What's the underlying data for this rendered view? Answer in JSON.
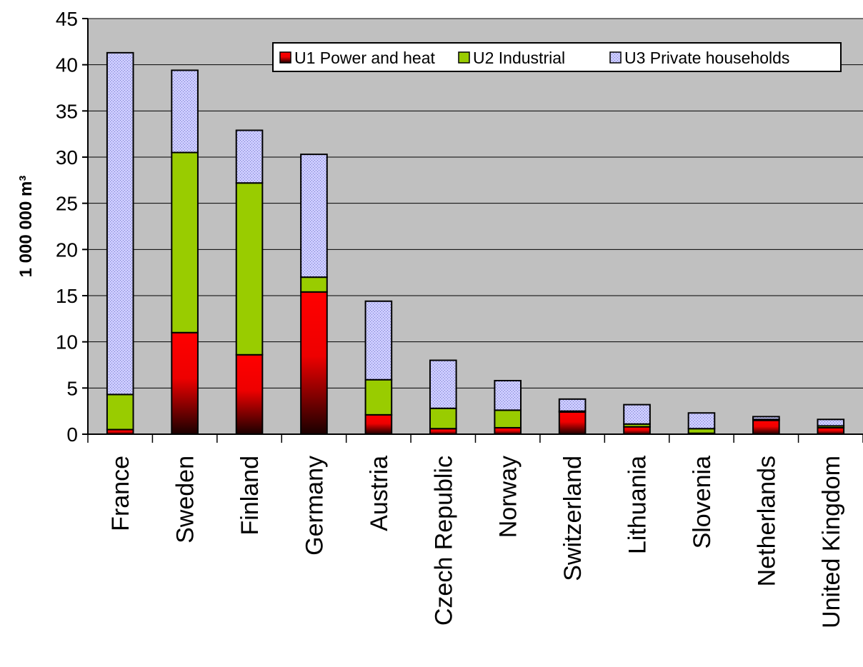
{
  "chart_data": {
    "type": "bar",
    "stacked": true,
    "title": "",
    "xlabel": "",
    "ylabel": "1 000 000 m³",
    "ylim": [
      0,
      45
    ],
    "yticks": [
      0,
      5,
      10,
      15,
      20,
      25,
      30,
      35,
      40,
      45
    ],
    "grid": true,
    "legend_position": "top-right",
    "categories": [
      "France",
      "Sweden",
      "Finland",
      "Germany",
      "Austria",
      "Czech Republic",
      "Norway",
      "Switzerland",
      "Lithuania",
      "Slovenia",
      "Netherlands",
      "United Kingdom"
    ],
    "series": [
      {
        "name": "U1 Power and heat",
        "color": "#ff0000",
        "values": [
          0.5,
          11.0,
          8.6,
          15.4,
          2.1,
          0.6,
          0.7,
          2.4,
          0.8,
          0.1,
          1.5,
          0.7
        ]
      },
      {
        "name": "U2 Industrial",
        "color": "#99cc00",
        "values": [
          3.8,
          19.5,
          18.6,
          1.6,
          3.8,
          2.2,
          1.9,
          0.1,
          0.3,
          0.5,
          0.1,
          0.2
        ]
      },
      {
        "name": "U3 Private households",
        "color": "#ccccff",
        "values": [
          37.0,
          8.9,
          5.7,
          13.3,
          8.5,
          5.2,
          3.2,
          1.3,
          2.1,
          1.7,
          0.3,
          0.7
        ]
      }
    ],
    "colors": {
      "plot_background": "#c0c0c0",
      "gridline": "#000000"
    }
  }
}
